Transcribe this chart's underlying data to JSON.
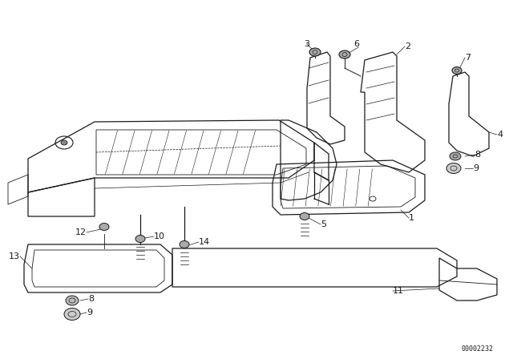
{
  "bg_color": "#ffffff",
  "line_color": "#1a1a1a",
  "diagram_id": "00002232",
  "figsize": [
    6.4,
    4.48
  ],
  "dpi": 100
}
